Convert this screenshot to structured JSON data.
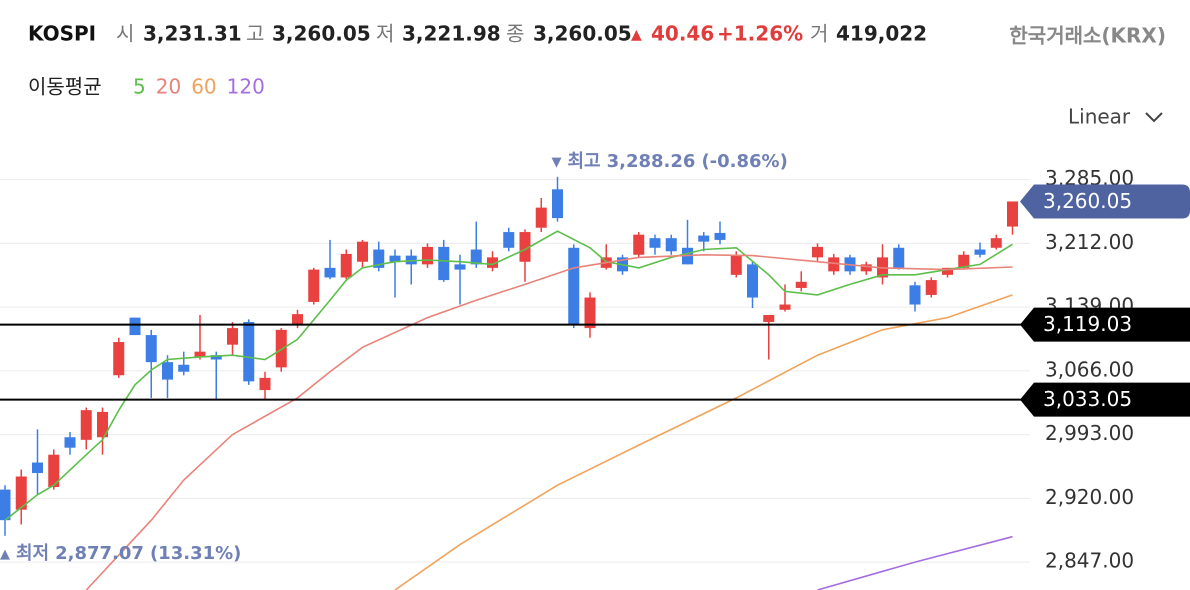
{
  "header": {
    "symbol": "KOSPI",
    "open_label": "시",
    "open": "3,231.31",
    "high_label": "고",
    "high": "3,260.05",
    "low_label": "저",
    "low": "3,221.98",
    "close_label": "종",
    "close": "3,260.05",
    "change_marker": "▲",
    "change": "40.46",
    "change_pct": "+1.26%",
    "volume_label": "거",
    "volume": "419,022",
    "source": "한국거래소(KRX)",
    "scale_selector": "Linear"
  },
  "chart_data": {
    "type": "candlestick",
    "legend_title": "이동평균",
    "ylim": [
      2815,
      3319
    ],
    "yticks": [
      {
        "value": 3285,
        "label": "3,285.00"
      },
      {
        "value": 3212,
        "label": "3,212.00"
      },
      {
        "value": 3139,
        "label": "3,139.00"
      },
      {
        "value": 3066,
        "label": "3,066.00"
      },
      {
        "value": 2993,
        "label": "2,993.00"
      },
      {
        "value": 2920,
        "label": "2,920.00"
      },
      {
        "value": 2847,
        "label": "2,847.00"
      }
    ],
    "grid": true,
    "up_color": "#e8413f",
    "down_color": "#3d7ee6",
    "open": [
      2930,
      2907,
      2961,
      2933,
      2990,
      2987,
      2990,
      3061,
      3127,
      3107,
      3076,
      3073,
      3082,
      3084,
      3096,
      3122,
      3044,
      3070,
      3119,
      3145,
      3184,
      3173,
      3191,
      3205,
      3198,
      3198,
      3188,
      3208,
      3188,
      3205,
      3184,
      3225,
      3191,
      3230,
      3274,
      3207,
      3115,
      3184,
      3196,
      3199,
      3218,
      3218,
      3207,
      3221,
      3224,
      3176,
      3188,
      3122,
      3136,
      3161,
      3196,
      3180,
      3196,
      3180,
      3173,
      3207,
      3164,
      3153,
      3176,
      3184,
      3205,
      3207,
      3231.31
    ],
    "high": [
      2935,
      2953,
      2999,
      2976,
      2996,
      3024,
      3024,
      3104,
      3127,
      3113,
      3084,
      3088,
      3130,
      3088,
      3122,
      3125,
      3065,
      3115,
      3136,
      3184,
      3216,
      3205,
      3216,
      3214,
      3205,
      3205,
      3212,
      3216,
      3199,
      3237,
      3203,
      3230,
      3228,
      3264,
      3288.26,
      3211,
      3156,
      3211,
      3199,
      3225,
      3222,
      3222,
      3239,
      3225,
      3237,
      3203,
      3191,
      3130,
      3165,
      3180,
      3212,
      3200,
      3199,
      3191,
      3211,
      3211,
      3168,
      3173,
      3184,
      3203,
      3213,
      3222,
      3260.05
    ],
    "low": [
      2877.07,
      2890,
      2924,
      2930,
      2970,
      2976,
      2970,
      3058,
      3107,
      3035,
      3035,
      3061,
      3079,
      3033,
      3084,
      3050,
      3033,
      3065,
      3115,
      3142,
      3171,
      3171,
      3184,
      3180,
      3150,
      3165,
      3184,
      3168,
      3142,
      3184,
      3180,
      3203,
      3168,
      3225,
      3237,
      3115,
      3104,
      3182,
      3176,
      3196,
      3199,
      3199,
      3188,
      3203,
      3211,
      3173,
      3138,
      3079,
      3134,
      3157,
      3191,
      3176,
      3176,
      3176,
      3165,
      3182,
      3134,
      3150,
      3173,
      3182,
      3196,
      3205,
      3221.98
    ],
    "close": [
      2895,
      2945,
      2949,
      2970,
      2978,
      3021,
      3019,
      3099,
      3107,
      3076,
      3056,
      3065,
      3088,
      3079,
      3115,
      3054,
      3058,
      3113,
      3131,
      3182,
      3173,
      3200,
      3214,
      3184,
      3191,
      3188,
      3208,
      3170,
      3182,
      3188,
      3196,
      3207,
      3225,
      3253,
      3241,
      3119,
      3150,
      3196,
      3180,
      3222,
      3207,
      3203,
      3188,
      3214,
      3216,
      3199,
      3150,
      3130,
      3142,
      3168,
      3208,
      3196,
      3180,
      3188,
      3196,
      3184,
      3142,
      3170,
      3184,
      3199,
      3199,
      3218,
      3260.05
    ],
    "moving_averages": [
      {
        "name": "5",
        "color": "#5cbf4a",
        "x": [
          0,
          2,
          3,
          5,
          6,
          7,
          8,
          9,
          10,
          12,
          14,
          16,
          18,
          20,
          21,
          22,
          24,
          26,
          28,
          30,
          32,
          34,
          36,
          37,
          39,
          41,
          43,
          45,
          47,
          48,
          50,
          52,
          54,
          56,
          58,
          60,
          62
        ],
        "values": [
          2895,
          2924,
          2935,
          2970,
          2987,
          3021,
          3050,
          3067,
          3079,
          3082,
          3084,
          3079,
          3102,
          3147,
          3170,
          3184,
          3191,
          3193,
          3191,
          3188,
          3205,
          3226,
          3207,
          3191,
          3184,
          3196,
          3205,
          3207,
          3176,
          3157,
          3153,
          3165,
          3176,
          3176,
          3182,
          3188,
          3211
        ]
      },
      {
        "name": "20",
        "color": "#e8837a",
        "x": [
          5,
          9,
          11,
          14,
          18,
          20,
          22,
          26,
          29,
          32,
          35,
          39,
          43,
          46,
          50,
          54,
          58,
          62
        ],
        "values": [
          2815,
          2895,
          2941,
          2993,
          3035,
          3065,
          3093,
          3127,
          3147,
          3165,
          3184,
          3196,
          3199,
          3198,
          3191,
          3184,
          3182,
          3185
        ]
      },
      {
        "name": "60",
        "color": "#f0a35a",
        "x": [
          24,
          28,
          34,
          39,
          45,
          50,
          54,
          58,
          62
        ],
        "values": [
          2815,
          2867,
          2935,
          2981,
          3035,
          3084,
          3113,
          3127,
          3153
        ]
      },
      {
        "name": "120",
        "color": "#a36ee0",
        "x": [
          50,
          56,
          62
        ],
        "values": [
          2815,
          2847,
          2876
        ]
      }
    ],
    "ref_lines": [
      {
        "value": 3119.03,
        "label": "3,119.03"
      },
      {
        "value": 3033.05,
        "label": "3,033.05"
      }
    ],
    "current_price": {
      "value": 3260.05,
      "label": "3,260.05"
    },
    "max_annotation": {
      "marker": "▼",
      "text": "최고",
      "value": {
        "value": 3288.26,
        "label": "3,288.26"
      },
      "change": "(-0.86%)"
    },
    "min_annotation": {
      "marker": "▲",
      "text": "최저",
      "value": {
        "value": 2877.07,
        "label": "2,877.07"
      },
      "change": "(13.31%)"
    }
  }
}
